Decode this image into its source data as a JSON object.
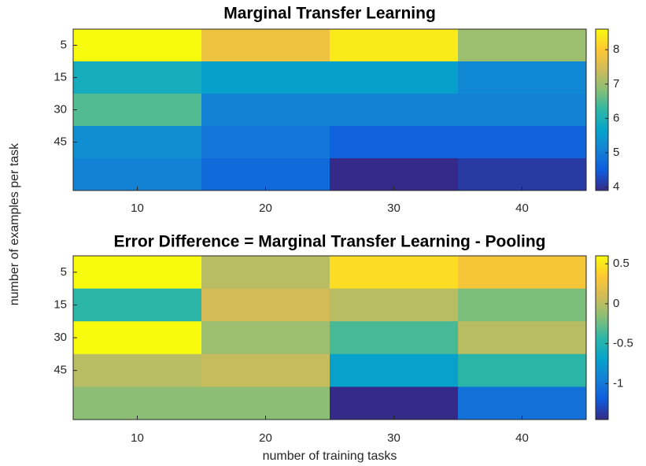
{
  "chart_data": [
    {
      "type": "heatmap",
      "title": "Marginal Transfer Learning",
      "ylabel": "number of examples per task",
      "categories": [
        "10",
        "20",
        "30",
        "40"
      ],
      "rows": [
        "5",
        "15",
        "30",
        "45",
        null
      ],
      "values": [
        [
          8.6,
          7.8,
          8.4,
          7.0
        ],
        [
          5.9,
          5.6,
          5.6,
          5.2
        ],
        [
          6.5,
          5.1,
          5.1,
          5.1
        ],
        [
          5.3,
          4.9,
          4.6,
          4.6
        ],
        [
          5.1,
          4.7,
          3.9,
          4.1
        ]
      ],
      "zlim": [
        3.9,
        8.6
      ],
      "cticks": [
        4,
        5,
        6,
        7,
        8
      ],
      "colormap": "parula"
    },
    {
      "type": "heatmap",
      "title": "Error Difference = Marginal Transfer Learning - Pooling",
      "xlabel": "number of training tasks",
      "categories": [
        "10",
        "20",
        "30",
        "40"
      ],
      "rows": [
        "5",
        "15",
        "30",
        "45",
        null
      ],
      "values": [
        [
          0.6,
          0.0,
          0.45,
          0.3
        ],
        [
          -0.45,
          0.1,
          0.0,
          -0.2
        ],
        [
          0.6,
          -0.1,
          -0.35,
          0.0
        ],
        [
          0.0,
          0.05,
          -0.7,
          -0.45
        ],
        [
          -0.15,
          -0.15,
          -1.45,
          -1.05
        ]
      ],
      "zlim": [
        -1.45,
        0.6
      ],
      "cticks": [
        -1,
        -0.5,
        0,
        0.5
      ],
      "colormap": "parula"
    }
  ]
}
